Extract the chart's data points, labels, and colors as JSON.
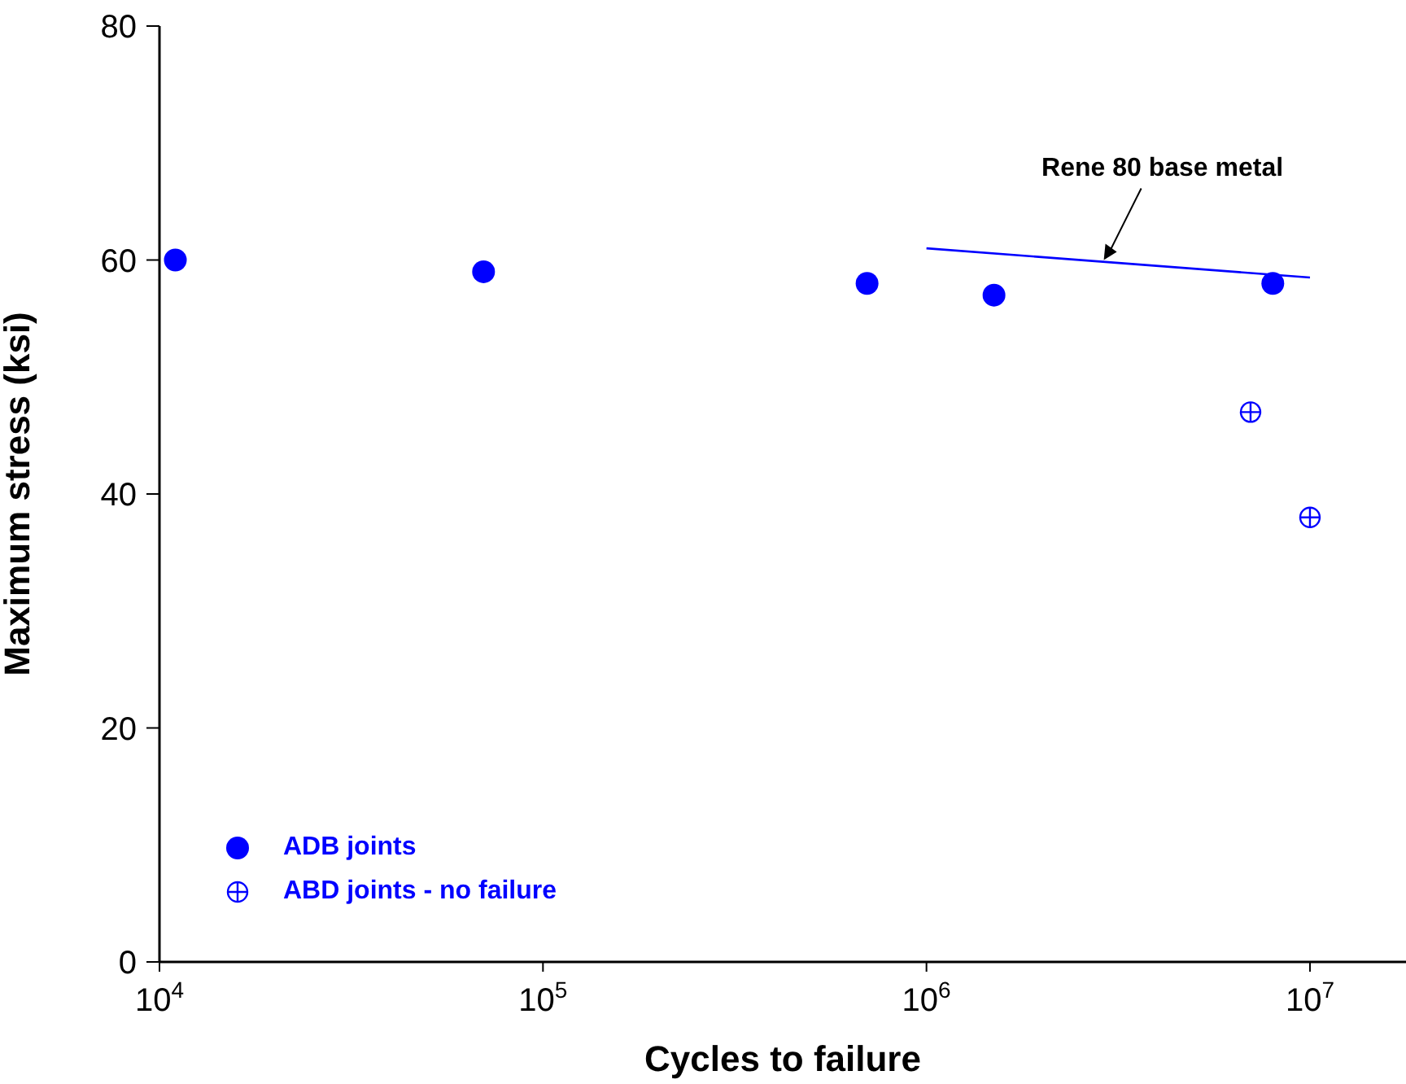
{
  "chart_data": {
    "type": "scatter",
    "xlabel": "Cycles to failure",
    "ylabel": "Maximum stress (ksi)",
    "log": "x",
    "xlim": [
      10000,
      17800000
    ],
    "xticks": [
      {
        "value": 10000,
        "label": "10$^{4}$"
      },
      {
        "value": 100000,
        "label": "10$^{5}$"
      },
      {
        "value": 1000000,
        "label": "10$^{6}$"
      },
      {
        "value": 10000000,
        "label": "10$^{7}$"
      }
    ],
    "ylim": [
      0,
      80
    ],
    "yticks": [
      0,
      20,
      40,
      60,
      80
    ],
    "legend": "bottom left",
    "series": [
      {
        "name": "ADB joints",
        "marker": "circle",
        "color": "#0000ff",
        "x": [
          11000,
          70000,
          700000,
          1500000,
          8000000
        ],
        "values": [
          60,
          59,
          58,
          57,
          58
        ]
      },
      {
        "name": "ABD joints - no failure",
        "color": "#0000ff",
        "x": [
          7000000,
          10000000
        ],
        "values": [
          47,
          38
        ]
      },
      {
        "type": "line",
        "marker": "none",
        "color": "#0000ff",
        "x": [
          1000000,
          10000000
        ],
        "values": [
          61,
          58.5
        ]
      }
    ],
    "annotations": [
      {
        "text": "Rene 80 base metal",
        "x": 2900000,
        "y": 60
      }
    ]
  }
}
